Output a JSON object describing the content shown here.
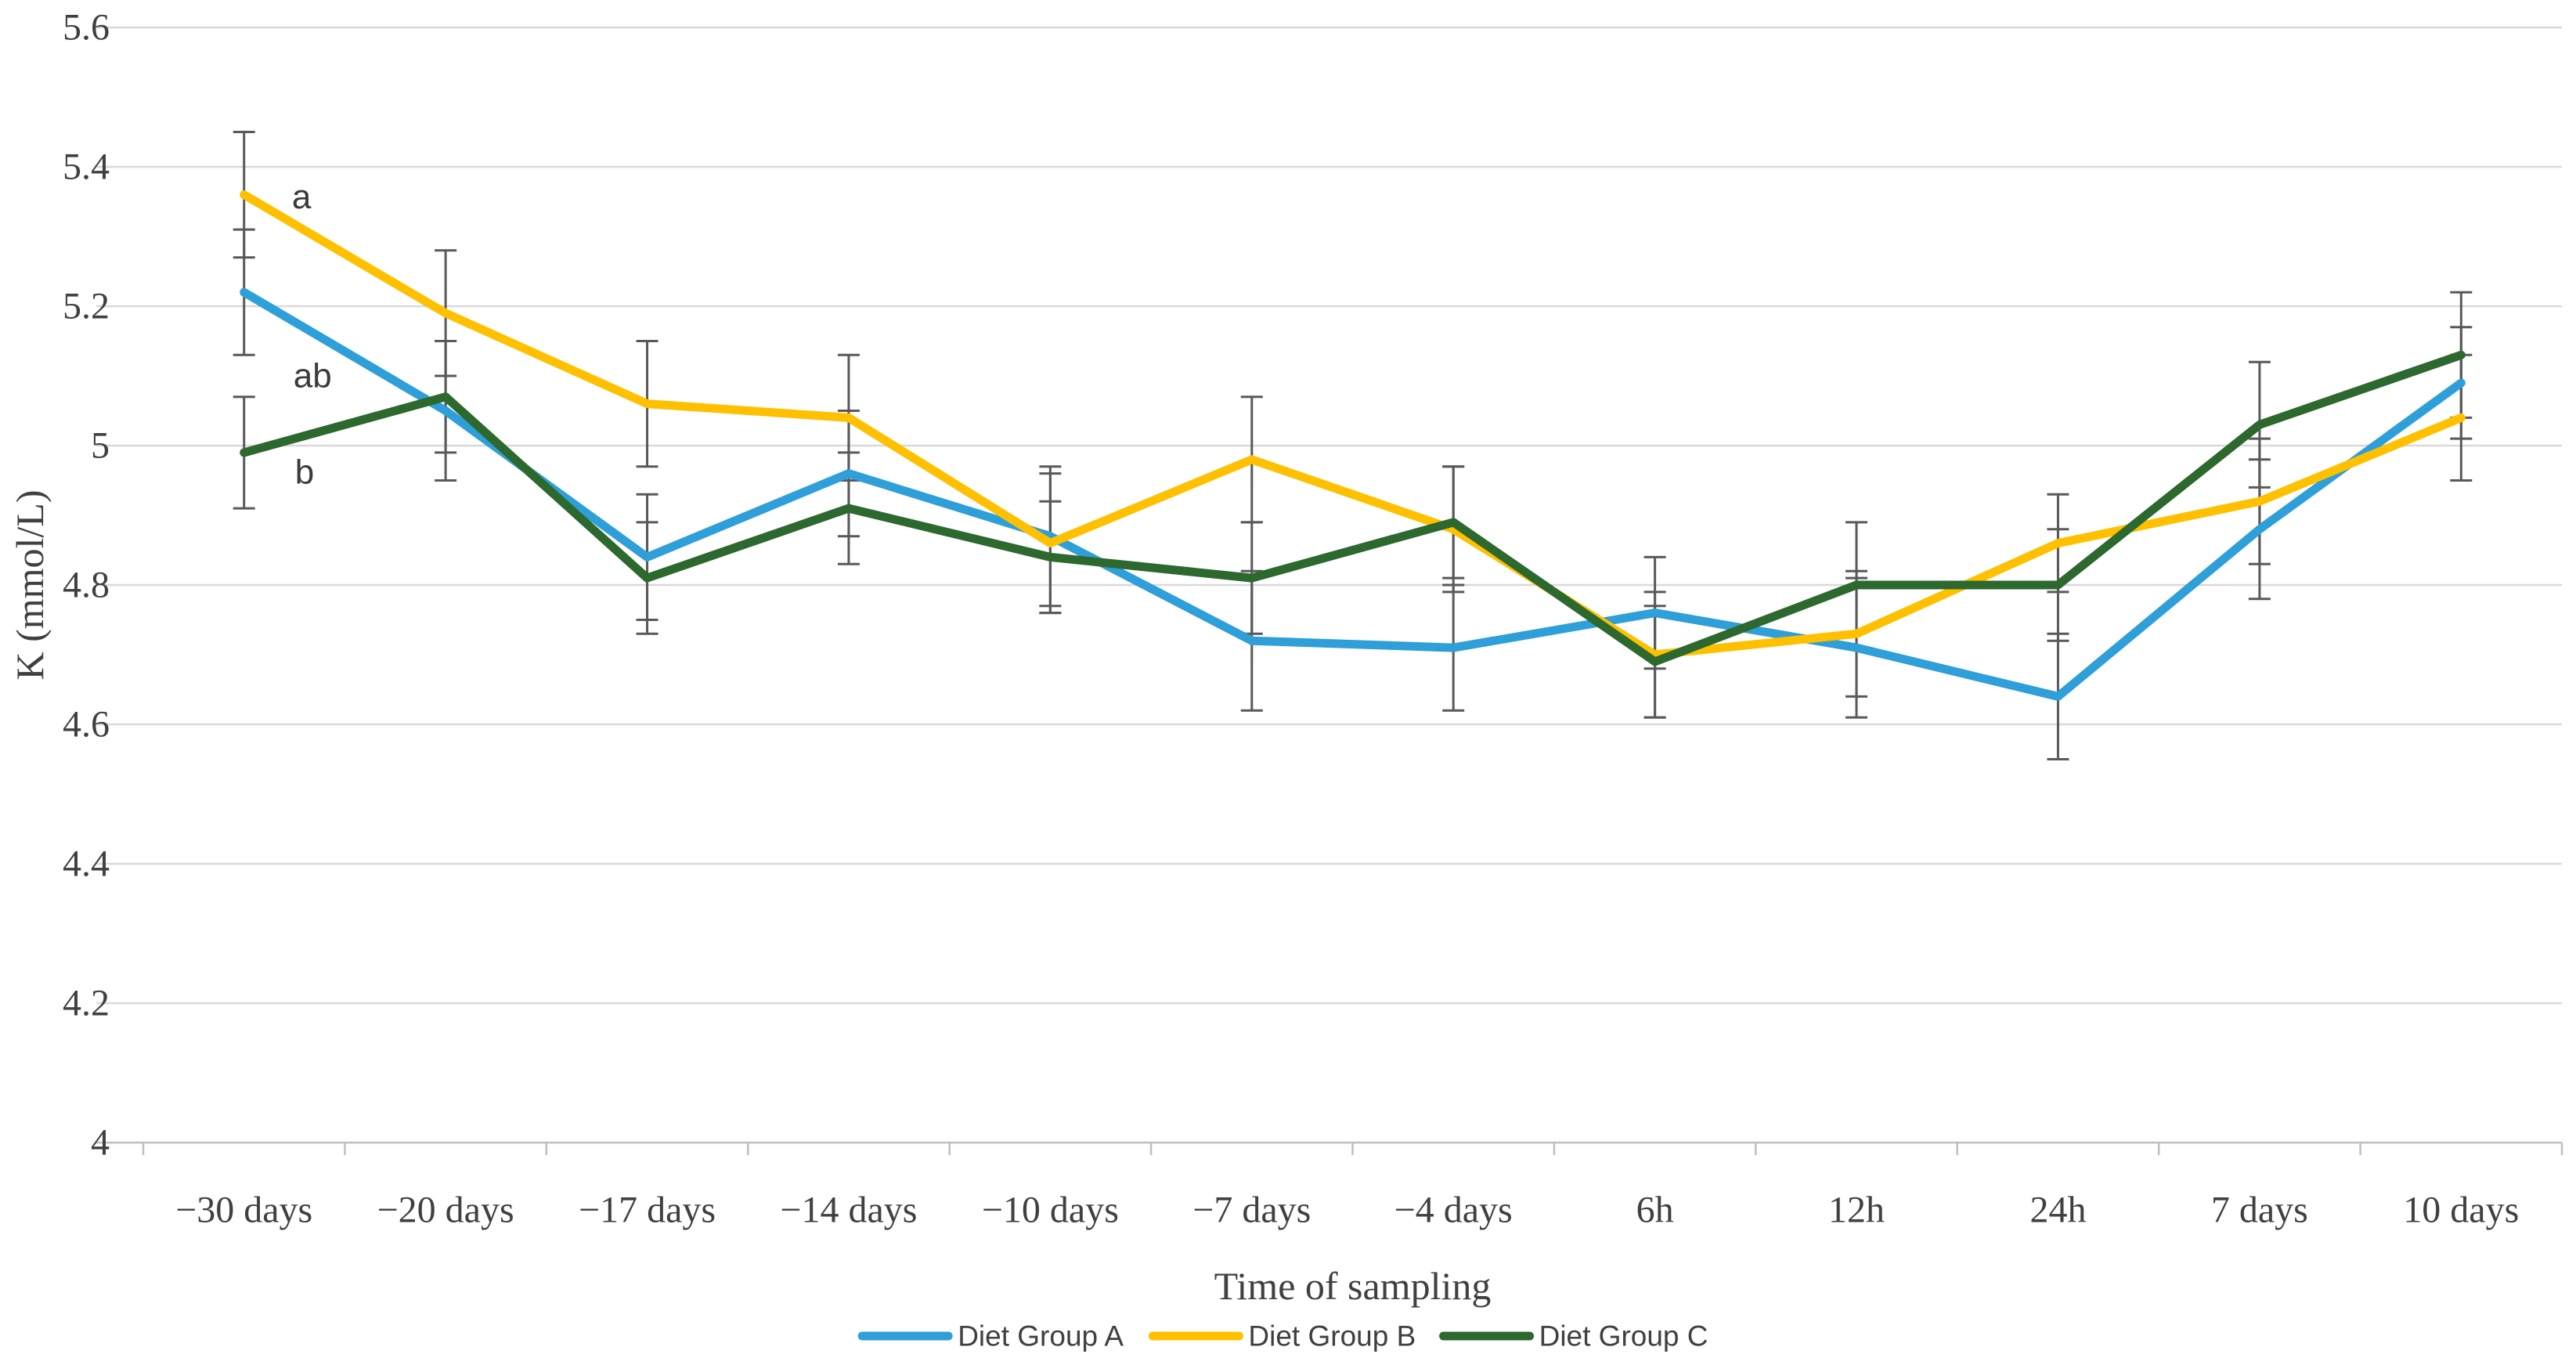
{
  "chart_data": {
    "type": "line",
    "title": "",
    "xlabel": "Time of sampling",
    "ylabel": "K (mmol/L)",
    "ylim": [
      4.0,
      5.6
    ],
    "ytick_labels": [
      "5.6",
      "5.4",
      "5.2",
      "5",
      "4.8",
      "4.6",
      "4.4",
      "4.2",
      "4"
    ],
    "ytick_values": [
      5.6,
      5.4,
      5.2,
      5.0,
      4.8,
      4.6,
      4.4,
      4.2,
      4.0
    ],
    "grid": true,
    "legend_position": "bottom",
    "categories": [
      "−30 days",
      "−20 days",
      "−17 days",
      "−14 days",
      "−10 days",
      "−7 days",
      "−4 days",
      "6h",
      "12h",
      "24h",
      "7 days",
      "10 days"
    ],
    "series": [
      {
        "name": "Diet Group A",
        "color": "#2E9FD9",
        "values": [
          5.22,
          5.05,
          4.84,
          4.96,
          4.87,
          4.72,
          4.71,
          4.76,
          4.71,
          4.64,
          4.88,
          5.09
        ],
        "err": [
          0.09,
          0.1,
          0.09,
          0.09,
          0.1,
          0.1,
          0.09,
          0.08,
          0.1,
          0.09,
          0.1,
          0.08
        ]
      },
      {
        "name": "Diet Group B",
        "color": "#FFC000",
        "values": [
          5.36,
          5.19,
          5.06,
          5.04,
          4.86,
          4.98,
          4.88,
          4.7,
          4.73,
          4.86,
          4.92,
          5.04
        ],
        "err": [
          0.09,
          0.09,
          0.09,
          0.09,
          0.1,
          0.09,
          0.09,
          0.09,
          0.09,
          0.07,
          0.09,
          0.09
        ]
      },
      {
        "name": "Diet Group C",
        "color": "#2D682E",
        "values": [
          4.99,
          5.07,
          4.81,
          4.91,
          4.84,
          4.81,
          4.89,
          4.69,
          4.8,
          4.8,
          5.03,
          5.13
        ],
        "err": [
          0.08,
          0.08,
          0.08,
          0.08,
          0.08,
          0.08,
          0.08,
          0.08,
          0.09,
          0.08,
          0.09,
          0.09
        ]
      }
    ],
    "annotations": [
      {
        "text": "a",
        "ci": 0.285,
        "v": 5.357
      },
      {
        "text": "ab",
        "ci": 0.34,
        "v": 5.1
      },
      {
        "text": "b",
        "ci": 0.3,
        "v": 4.962
      }
    ],
    "colors": {
      "gridline": "#D9D9D9",
      "axis_line": "#BFBFBF",
      "tick_mark": "#BFBFBF",
      "error_bar": "#595959",
      "text": "#404040"
    }
  }
}
